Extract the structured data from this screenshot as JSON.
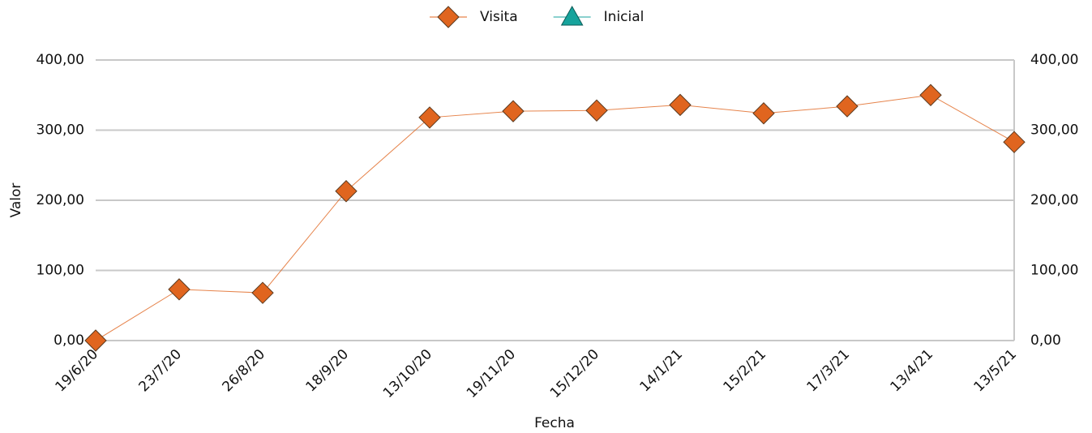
{
  "chart_data": {
    "type": "line",
    "x_label": "Fecha",
    "y_label": "Valor",
    "categories": [
      "19/6/20",
      "23/7/20",
      "26/8/20",
      "18/9/20",
      "13/10/20",
      "19/11/20",
      "15/12/20",
      "14/1/21",
      "15/2/21",
      "17/3/21",
      "13/4/21",
      "13/5/21"
    ],
    "series": [
      {
        "name": "Visita",
        "color": "#e0651f",
        "marker": "diamond",
        "values": [
          0,
          73,
          68,
          213,
          318,
          327,
          328,
          336,
          324,
          334,
          350,
          283
        ]
      },
      {
        "name": "Inicial",
        "color": "#16a39c",
        "marker": "triangle",
        "values": [
          null,
          null,
          null,
          null,
          null,
          null,
          null,
          null,
          null,
          null,
          null,
          null
        ]
      }
    ],
    "ylim": [
      0,
      400
    ],
    "yticks": [
      {
        "value": 0,
        "label": "0,00"
      },
      {
        "value": 100,
        "label": "100,00"
      },
      {
        "value": 200,
        "label": "200,00"
      },
      {
        "value": 300,
        "label": "300,00"
      },
      {
        "value": 400,
        "label": "400,00"
      }
    ],
    "y2lim": [
      0,
      400
    ],
    "y2ticks": [
      {
        "value": 0,
        "label": "0,00"
      },
      {
        "value": 100,
        "label": "100,00"
      },
      {
        "value": 200,
        "label": "200,00"
      },
      {
        "value": 300,
        "label": "300,00"
      },
      {
        "value": 400,
        "label": "400,00"
      }
    ],
    "grid": true,
    "legend": "top"
  }
}
